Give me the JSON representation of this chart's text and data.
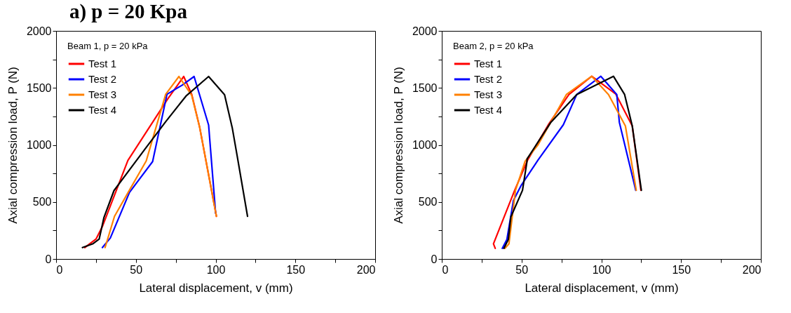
{
  "chart_data": [
    {
      "type": "line",
      "title": "a) p = 20 Kpa",
      "xlabel": "Lateral displacement, v (mm)",
      "ylabel": "Axial compression load, P (N)",
      "legend_title": "Beam 1, p = 20 kPa",
      "legend": "top left",
      "grid": false,
      "xlim": [
        0,
        200
      ],
      "ylim": [
        0,
        2000
      ],
      "xticks": [
        0,
        {
          "value": 25,
          "label": null
        },
        50,
        {
          "value": 75,
          "label": null
        },
        100,
        {
          "value": 125,
          "label": null
        },
        150,
        {
          "value": 175,
          "label": null
        },
        200
      ],
      "yticks": [
        0,
        {
          "value": 250,
          "label": null
        },
        500,
        {
          "value": 750,
          "label": null
        },
        1000,
        {
          "value": 1250,
          "label": null
        },
        1500,
        {
          "value": 1750,
          "label": null
        },
        2000
      ],
      "series": [
        {
          "name": "Test 1",
          "color": "#ff0000",
          "x": [
            18,
            25,
            29,
            45,
            70,
            80,
            85,
            90,
            100.5
          ],
          "values": [
            100,
            174,
            284,
            864,
            1404,
            1600,
            1444,
            1154,
            374
          ]
        },
        {
          "name": "Test 2",
          "color": "#0000ff",
          "x": [
            29,
            34,
            46,
            60.5,
            69.5,
            79,
            86.5,
            95.6,
            100
          ],
          "values": [
            100,
            184,
            584,
            854,
            1444,
            1524,
            1600,
            1174,
            400
          ]
        },
        {
          "name": "Test 3",
          "color": "#ff8000",
          "x": [
            30.7,
            36.6,
            46,
            56.5,
            62,
            68.7,
            77,
            85,
            90,
            100.5
          ],
          "values": [
            100,
            374,
            604,
            860,
            1124,
            1444,
            1600,
            1434,
            1154,
            374
          ]
        },
        {
          "name": "Test 4",
          "color": "#000000",
          "x": [
            16.5,
            23.2,
            27,
            30,
            36.3,
            56.8,
            68.7,
            81.4,
            95.6,
            105.6,
            110.5,
            113.5,
            120
          ],
          "values": [
            100,
            134,
            174,
            364,
            600,
            984,
            1204,
            1428,
            1600,
            1440,
            1144,
            904,
            374
          ]
        }
      ]
    },
    {
      "type": "line",
      "xlabel": "Lateral displacement, v (mm)",
      "ylabel": "Axial compression load, P (N)",
      "legend_title": "Beam 2, p = 20 kPa",
      "legend": "top left",
      "grid": false,
      "xlim": [
        0,
        200
      ],
      "ylim": [
        0,
        2000
      ],
      "xticks": [
        0,
        {
          "value": 25,
          "label": null
        },
        50,
        {
          "value": 75,
          "label": null
        },
        100,
        {
          "value": 125,
          "label": null
        },
        150,
        {
          "value": 175,
          "label": null
        },
        200
      ],
      "yticks": [
        0,
        {
          "value": 250,
          "label": null
        },
        500,
        {
          "value": 750,
          "label": null
        },
        1000,
        {
          "value": 1250,
          "label": null
        },
        1500,
        {
          "value": 1750,
          "label": null
        },
        2000
      ],
      "series": [
        {
          "name": "Test 1",
          "color": "#ff0000",
          "x": [
            33.5,
            32.4,
            45.7,
            53.8,
            66.8,
            79.7,
            94,
            109,
            119.4,
            124.8
          ],
          "values": [
            93,
            133,
            602,
            867,
            1177,
            1442,
            1602,
            1447,
            1166,
            602
          ]
        },
        {
          "name": "Test 2",
          "color": "#0000ff",
          "x": [
            37.9,
            40.8,
            44.9,
            49.8,
            60.3,
            76.2,
            84.6,
            99.7,
            109.7,
            111.3,
            121.6
          ],
          "values": [
            93,
            170,
            513,
            646,
            867,
            1177,
            1442,
            1602,
            1442,
            1199,
            602
          ]
        },
        {
          "name": "Test 3",
          "color": "#ff8000",
          "x": [
            39.5,
            42.1,
            46.2,
            52.2,
            60.3,
            78.1,
            94,
            104.5,
            115.1,
            121.9
          ],
          "values": [
            93,
            133,
            602,
            856,
            1000,
            1442,
            1602,
            1442,
            1166,
            602
          ]
        },
        {
          "name": "Test 4",
          "color": "#000000",
          "x": [
            38.9,
            41.7,
            43.3,
            50.6,
            53.3,
            53.5,
            68.4,
            84.6,
            107.6,
            114.6,
            119.4,
            125.1
          ],
          "values": [
            93,
            170,
            369,
            602,
            845,
            878,
            1199,
            1442,
            1602,
            1442,
            1166,
            602
          ]
        }
      ]
    }
  ]
}
